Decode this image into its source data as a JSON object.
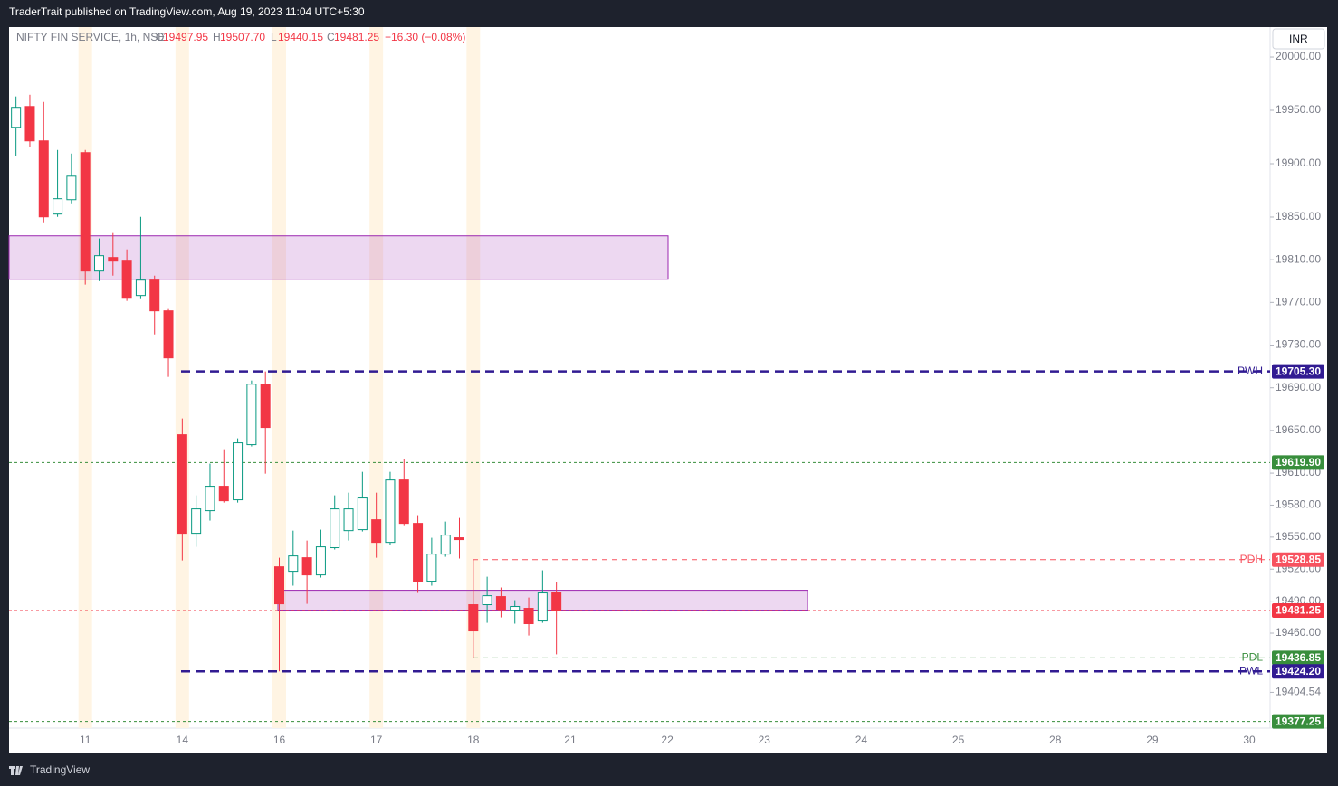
{
  "publish_note": "TraderTrait published on TradingView.com, Aug 19, 2023 11:04 UTC+5:30",
  "header": {
    "symbol": "NIFTY FIN SERVICE, 1h, NSE",
    "fields": [
      {
        "key": "O",
        "value": "19497.95"
      },
      {
        "key": "H",
        "value": "19507.70"
      },
      {
        "key": "L",
        "value": "19440.15"
      },
      {
        "key": "C",
        "value": "19481.25"
      }
    ],
    "change": "−16.30 (−0.08%)"
  },
  "currency_button": "INR",
  "footer_brand": "TradingView",
  "chart_data": {
    "type": "candlestick",
    "up_color": "#089981",
    "down_color": "#f23645",
    "categories": [
      null,
      null,
      null,
      null,
      null,
      "11",
      null,
      null,
      null,
      null,
      null,
      null,
      "14",
      null,
      null,
      null,
      null,
      null,
      null,
      "16",
      null,
      null,
      null,
      null,
      null,
      null,
      "17",
      null,
      null,
      null,
      null,
      null,
      null,
      "18",
      null,
      null,
      null,
      null,
      null,
      null,
      "21",
      null,
      null,
      null,
      null,
      null,
      null,
      "22",
      null,
      null,
      null,
      null,
      null,
      null,
      "23",
      null,
      null,
      null,
      null,
      null,
      null,
      "24",
      null,
      null,
      null,
      null,
      null,
      null,
      "25",
      null,
      null,
      null,
      null,
      null,
      null,
      "28",
      null,
      null,
      null,
      null,
      null,
      null,
      "29",
      null,
      null,
      null,
      null,
      null,
      null,
      "30",
      null
    ],
    "open": [
      19934.1,
      19953.6,
      19921.4,
      19852.8,
      19866.3,
      19910.4,
      19799.4,
      19812.1,
      19808.7,
      19776.5,
      19790.9,
      19762.1,
      19646.0,
      19553.6,
      19574.8,
      19597.7,
      19585.0,
      19636.7,
      19693.4,
      19522.2,
      19518.0,
      19530.7,
      19514.6,
      19540.1,
      19556.1,
      19557.0,
      19566.3,
      19545.1,
      19603.6,
      19562.9,
      19508.7,
      19534.1,
      19549.4,
      19486.7,
      19486.7,
      19494.3,
      19481.6,
      19483.3,
      19471.4,
      19497.95,
      null,
      null,
      null,
      null,
      null,
      null,
      null,
      null,
      null,
      null,
      null,
      null,
      null,
      null,
      null,
      null,
      null,
      null,
      null,
      null,
      null,
      null,
      null,
      null,
      null,
      null,
      null,
      null,
      null,
      null,
      null,
      null,
      null,
      null,
      null,
      null,
      null,
      null,
      null,
      null,
      null,
      null,
      null,
      null,
      null,
      null,
      null,
      null,
      null,
      null,
      null
    ],
    "high": [
      19963.0,
      19964.6,
      19957.8,
      19912.9,
      19909.5,
      19912.9,
      19829.9,
      19835.0,
      19819.7,
      19850.2,
      19795.1,
      19763.8,
      19661.2,
      19589.2,
      19618.9,
      19632.4,
      19642.6,
      19696.8,
      19705.3,
      19530.7,
      19556.1,
      19546.8,
      19557.0,
      19589.2,
      19591.7,
      19611.2,
      19591.7,
      19611.2,
      19623.1,
      19570.6,
      19549.4,
      19564.6,
      19568.0,
      19528.85,
      19512.9,
      19502.8,
      19490.9,
      19493.4,
      19518.9,
      19507.7,
      null,
      null,
      null,
      null,
      null,
      null,
      null,
      null,
      null,
      null,
      null,
      null,
      null,
      null,
      null,
      null,
      null,
      null,
      null,
      null,
      null,
      null,
      null,
      null,
      null,
      null,
      null,
      null,
      null,
      null,
      null,
      null,
      null,
      null,
      null,
      null,
      null,
      null,
      null,
      null,
      null,
      null,
      null,
      null,
      null,
      null,
      null,
      null,
      null,
      null,
      null
    ],
    "low": [
      19907.0,
      19915.5,
      19845.1,
      19850.2,
      19862.9,
      19786.7,
      19790.0,
      19795.1,
      19771.4,
      19773.1,
      19740.0,
      19700.2,
      19528.2,
      19540.9,
      19565.5,
      19582.4,
      19582.4,
      19635.0,
      19609.5,
      19424.2,
      19504.5,
      19487.5,
      19512.1,
      19538.4,
      19546.8,
      19555.3,
      19530.7,
      19542.6,
      19561.2,
      19497.7,
      19504.5,
      19531.6,
      19529.9,
      19436.85,
      19469.7,
      19474.8,
      19468.9,
      19457.8,
      19469.7,
      19440.15,
      null,
      null,
      null,
      null,
      null,
      null,
      null,
      null,
      null,
      null,
      null,
      null,
      null,
      null,
      null,
      null,
      null,
      null,
      null,
      null,
      null,
      null,
      null,
      null,
      null,
      null,
      null,
      null,
      null,
      null,
      null,
      null,
      null,
      null,
      null,
      null,
      null,
      null,
      null,
      null,
      null,
      null,
      null,
      null,
      null,
      null,
      null,
      null,
      null,
      null,
      null
    ],
    "close": [
      19952.8,
      19921.4,
      19850.2,
      19867.2,
      19888.3,
      19799.4,
      19813.8,
      19808.7,
      19773.9,
      19790.9,
      19762.1,
      19718.0,
      19553.6,
      19576.5,
      19597.7,
      19584.1,
      19638.4,
      19693.4,
      19652.8,
      19487.5,
      19532.4,
      19514.6,
      19540.9,
      19576.5,
      19576.5,
      19586.7,
      19545.1,
      19603.6,
      19562.9,
      19508.7,
      19534.1,
      19551.9,
      19547.7,
      19462.1,
      19495.1,
      19482.4,
      19485.0,
      19468.9,
      19497.7,
      19481.25,
      null,
      null,
      null,
      null,
      null,
      null,
      null,
      null,
      null,
      null,
      null,
      null,
      null,
      null,
      null,
      null,
      null,
      null,
      null,
      null,
      null,
      null,
      null,
      null,
      null,
      null,
      null,
      null,
      null,
      null,
      null,
      null,
      null,
      null,
      null,
      null,
      null,
      null,
      null,
      null,
      null,
      null,
      null,
      null,
      null,
      null,
      null,
      null,
      null,
      null,
      null
    ],
    "ylim": [
      19371,
      20028
    ],
    "yticks": [
      {
        "value": 20000,
        "label": "20000.00"
      },
      {
        "value": 19950,
        "label": "19950.00"
      },
      {
        "value": 19900,
        "label": "19900.00"
      },
      {
        "value": 19850,
        "label": "19850.00"
      },
      {
        "value": 19810,
        "label": "19810.00"
      },
      {
        "value": 19770,
        "label": "19770.00"
      },
      {
        "value": 19730,
        "label": "19730.00"
      },
      {
        "value": 19690,
        "label": "19690.00"
      },
      {
        "value": 19650,
        "label": "19650.00"
      },
      {
        "value": 19610,
        "label": "19610.00"
      },
      {
        "value": 19580,
        "label": "19580.00"
      },
      {
        "value": 19550,
        "label": "19550.00"
      },
      {
        "value": 19520,
        "label": "19520.00"
      },
      {
        "value": 19490,
        "label": "19490.00"
      },
      {
        "value": 19460,
        "label": "19460.00"
      },
      {
        "value": 19404.54,
        "label": "19404.54"
      }
    ],
    "zones": [
      {
        "high": 19832.4,
        "low": 19791.7
      },
      {
        "high": 19500.2,
        "low": 19481.6
      }
    ],
    "zone_color": "#9c27b0",
    "levels": [
      {
        "name": "PWH",
        "value": 19705.3,
        "label": "19705.30",
        "color": "#311b92",
        "style": "dashed"
      },
      {
        "value": 19619.9,
        "label": "19619.90",
        "color": "#388e3c",
        "style": "dotted"
      },
      {
        "name": "PDH",
        "value": 19528.85,
        "label": "19528.85",
        "color": "#f7525f",
        "style": "dashed"
      },
      {
        "value": 19481.25,
        "label": "19481.25",
        "color": "#f23645",
        "style": "dotted"
      },
      {
        "name": "PDL",
        "value": 19436.85,
        "label": "19436.85",
        "color": "#388e3c",
        "style": "dashed"
      },
      {
        "name": "PWL",
        "value": 19424.2,
        "label": "19424.20",
        "color": "#311b92",
        "style": "dashed"
      },
      {
        "value": 19377.25,
        "label": "19377.25",
        "color": "#388e3c",
        "style": "dotted"
      }
    ]
  }
}
